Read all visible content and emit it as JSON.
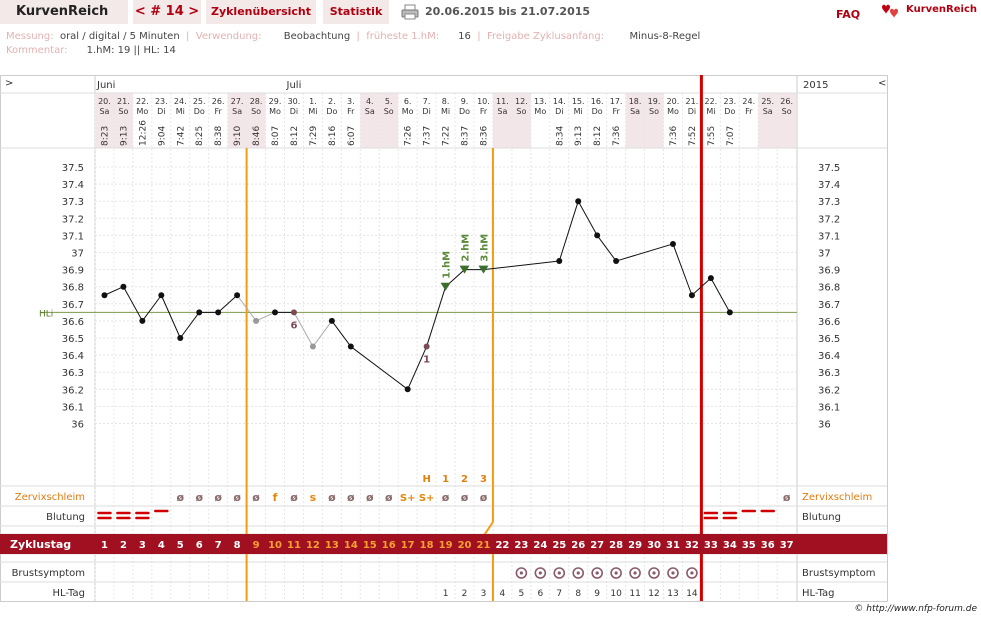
{
  "header": {
    "brand": "KurvenReich",
    "cycle_nav": "< # 14 >",
    "overview_link": "Zyklenübersicht",
    "stats_link": "Statistik",
    "print_icon": "printer-icon",
    "date_range": "20.06.2015 bis 21.07.2015",
    "faq_link": "FAQ",
    "logo_text": "KurvenReich",
    "logo_icon": "hearts-icon"
  },
  "meta": {
    "messung_label": "Messung:",
    "messung_value": "oral / digital / 5 Minuten",
    "verwendung_label": "Verwendung:",
    "verwendung_value": "Beobachtung",
    "hm_label": "früheste 1.hM:",
    "hm_value": "16",
    "freigabe_label": "Freigabe Zyklusanfang:",
    "freigabe_value": "Minus-8-Regel",
    "kommentar_label": "Kommentar:",
    "kommentar_value": "1.hM: 19 || HL: 14"
  },
  "chart_data": {
    "type": "line",
    "collapse_left": ">",
    "collapse_right": "<",
    "year": "2015",
    "months": [
      {
        "label": "Juni",
        "day_index": 1
      },
      {
        "label": "Juli",
        "day_index": 11
      }
    ],
    "days": [
      {
        "date": "20.",
        "wd": "Sa",
        "time": "8:23"
      },
      {
        "date": "21.",
        "wd": "So",
        "time": "9:13"
      },
      {
        "date": "22.",
        "wd": "Mo",
        "time": "12:26"
      },
      {
        "date": "23.",
        "wd": "Di",
        "time": "9:04"
      },
      {
        "date": "24.",
        "wd": "Mi",
        "time": "7:42"
      },
      {
        "date": "25.",
        "wd": "Do",
        "time": "8:25"
      },
      {
        "date": "26.",
        "wd": "Fr",
        "time": "8:38"
      },
      {
        "date": "27.",
        "wd": "Sa",
        "time": "9:10"
      },
      {
        "date": "28.",
        "wd": "So",
        "time": "8:46"
      },
      {
        "date": "29.",
        "wd": "Mo",
        "time": "8:07"
      },
      {
        "date": "30.",
        "wd": "Di",
        "time": "8:12"
      },
      {
        "date": "1.",
        "wd": "Mi",
        "time": "7:29"
      },
      {
        "date": "2.",
        "wd": "Do",
        "time": "8:16"
      },
      {
        "date": "3.",
        "wd": "Fr",
        "time": "6:07"
      },
      {
        "date": "4.",
        "wd": "Sa",
        "time": ""
      },
      {
        "date": "5.",
        "wd": "So",
        "time": ""
      },
      {
        "date": "6.",
        "wd": "Mo",
        "time": "7:26"
      },
      {
        "date": "7.",
        "wd": "Di",
        "time": "7:37"
      },
      {
        "date": "8.",
        "wd": "Mi",
        "time": "7:22"
      },
      {
        "date": "9.",
        "wd": "Do",
        "time": "8:37"
      },
      {
        "date": "10.",
        "wd": "Fr",
        "time": "8:36"
      },
      {
        "date": "11.",
        "wd": "Sa",
        "time": ""
      },
      {
        "date": "12.",
        "wd": "So",
        "time": ""
      },
      {
        "date": "13.",
        "wd": "Mo",
        "time": ""
      },
      {
        "date": "14.",
        "wd": "Di",
        "time": "8:34"
      },
      {
        "date": "15.",
        "wd": "Mi",
        "time": "9:13"
      },
      {
        "date": "16.",
        "wd": "Do",
        "time": "8:12"
      },
      {
        "date": "17.",
        "wd": "Fr",
        "time": "7:36"
      },
      {
        "date": "18.",
        "wd": "Sa",
        "time": ""
      },
      {
        "date": "19.",
        "wd": "So",
        "time": ""
      },
      {
        "date": "20.",
        "wd": "Mo",
        "time": "7:36"
      },
      {
        "date": "21.",
        "wd": "Di",
        "time": "7:52"
      },
      {
        "date": "22.",
        "wd": "Mi",
        "time": "7:55"
      },
      {
        "date": "23.",
        "wd": "Do",
        "time": "7:07"
      },
      {
        "date": "24.",
        "wd": "Fr",
        "time": ""
      },
      {
        "date": "25.",
        "wd": "Sa",
        "time": ""
      },
      {
        "date": "26.",
        "wd": "So",
        "time": ""
      }
    ],
    "y_ticks": [
      "37.5",
      "37.4",
      "37.3",
      "37.2",
      "37.1",
      "37",
      "36.9",
      "36.8",
      "36.7",
      "36.6",
      "36.5",
      "36.4",
      "36.3",
      "36.2",
      "36.1",
      "36"
    ],
    "ylim": [
      36.0,
      37.5
    ],
    "temperatures": [
      36.75,
      36.8,
      36.6,
      36.75,
      36.5,
      36.65,
      36.65,
      36.75,
      36.6,
      36.65,
      36.65,
      36.45,
      36.6,
      36.45,
      null,
      null,
      36.2,
      36.45,
      36.8,
      36.9,
      36.9,
      null,
      null,
      null,
      36.95,
      37.3,
      37.1,
      36.95,
      null,
      null,
      37.05,
      36.75,
      36.85,
      36.65,
      null,
      null,
      null
    ],
    "excluded_points": [
      8,
      11
    ],
    "hl_value": 36.65,
    "hl_label": "HLi",
    "markers": [
      {
        "day": 11,
        "label": "6"
      },
      {
        "day": 18,
        "label": "1"
      }
    ],
    "high_measure_labels": [
      {
        "day": 19,
        "label": "1.hM"
      },
      {
        "day": 20,
        "label": "2.hM"
      },
      {
        "day": 21,
        "label": "3.hM"
      }
    ],
    "orange_line_after_day": 8,
    "orange_line2_after_day": 21,
    "red_line_after_day": 32,
    "cervix_label": "Zervixschleim",
    "cervix_top": [
      {
        "day": 18,
        "label": "H"
      },
      {
        "day": 19,
        "label": "1"
      },
      {
        "day": 20,
        "label": "2"
      },
      {
        "day": 21,
        "label": "3"
      }
    ],
    "cervix": [
      "",
      "",
      "",
      "",
      "ø",
      "ø",
      "ø",
      "ø",
      "ø",
      "f",
      "ø",
      "s",
      "ø",
      "ø",
      "ø",
      "ø",
      "S+",
      "S+",
      "ø",
      "ø",
      "ø",
      "",
      "",
      "",
      "",
      "",
      "",
      "",
      "",
      "",
      "",
      "",
      "",
      "",
      "",
      "",
      "ø"
    ],
    "bleeding_label": "Blutung",
    "bleeding": [
      2,
      2,
      2,
      1,
      0,
      0,
      0,
      0,
      0,
      0,
      0,
      0,
      0,
      0,
      0,
      0,
      0,
      0,
      0,
      0,
      0,
      0,
      0,
      0,
      0,
      0,
      0,
      0,
      0,
      0,
      0,
      0,
      2,
      2,
      1,
      1,
      0
    ],
    "cycle_label": "Zyklustag",
    "breast_label": "Brustsymptom",
    "breast_days": [
      23,
      24,
      25,
      26,
      27,
      28,
      29,
      30,
      31,
      32
    ],
    "hl_tag_label": "HL-Tag",
    "hl_tag": [
      "",
      "",
      "",
      "",
      "",
      "",
      "",
      "",
      "",
      "",
      "",
      "",
      "",
      "",
      "",
      "",
      "",
      "",
      "1",
      "2",
      "3",
      "4",
      "5",
      "6",
      "7",
      "8",
      "9",
      "10",
      "11",
      "12",
      "13",
      "14",
      "",
      "",
      "",
      "",
      ""
    ]
  },
  "footer": {
    "copyright": "© http://www.nfp-forum.de"
  }
}
